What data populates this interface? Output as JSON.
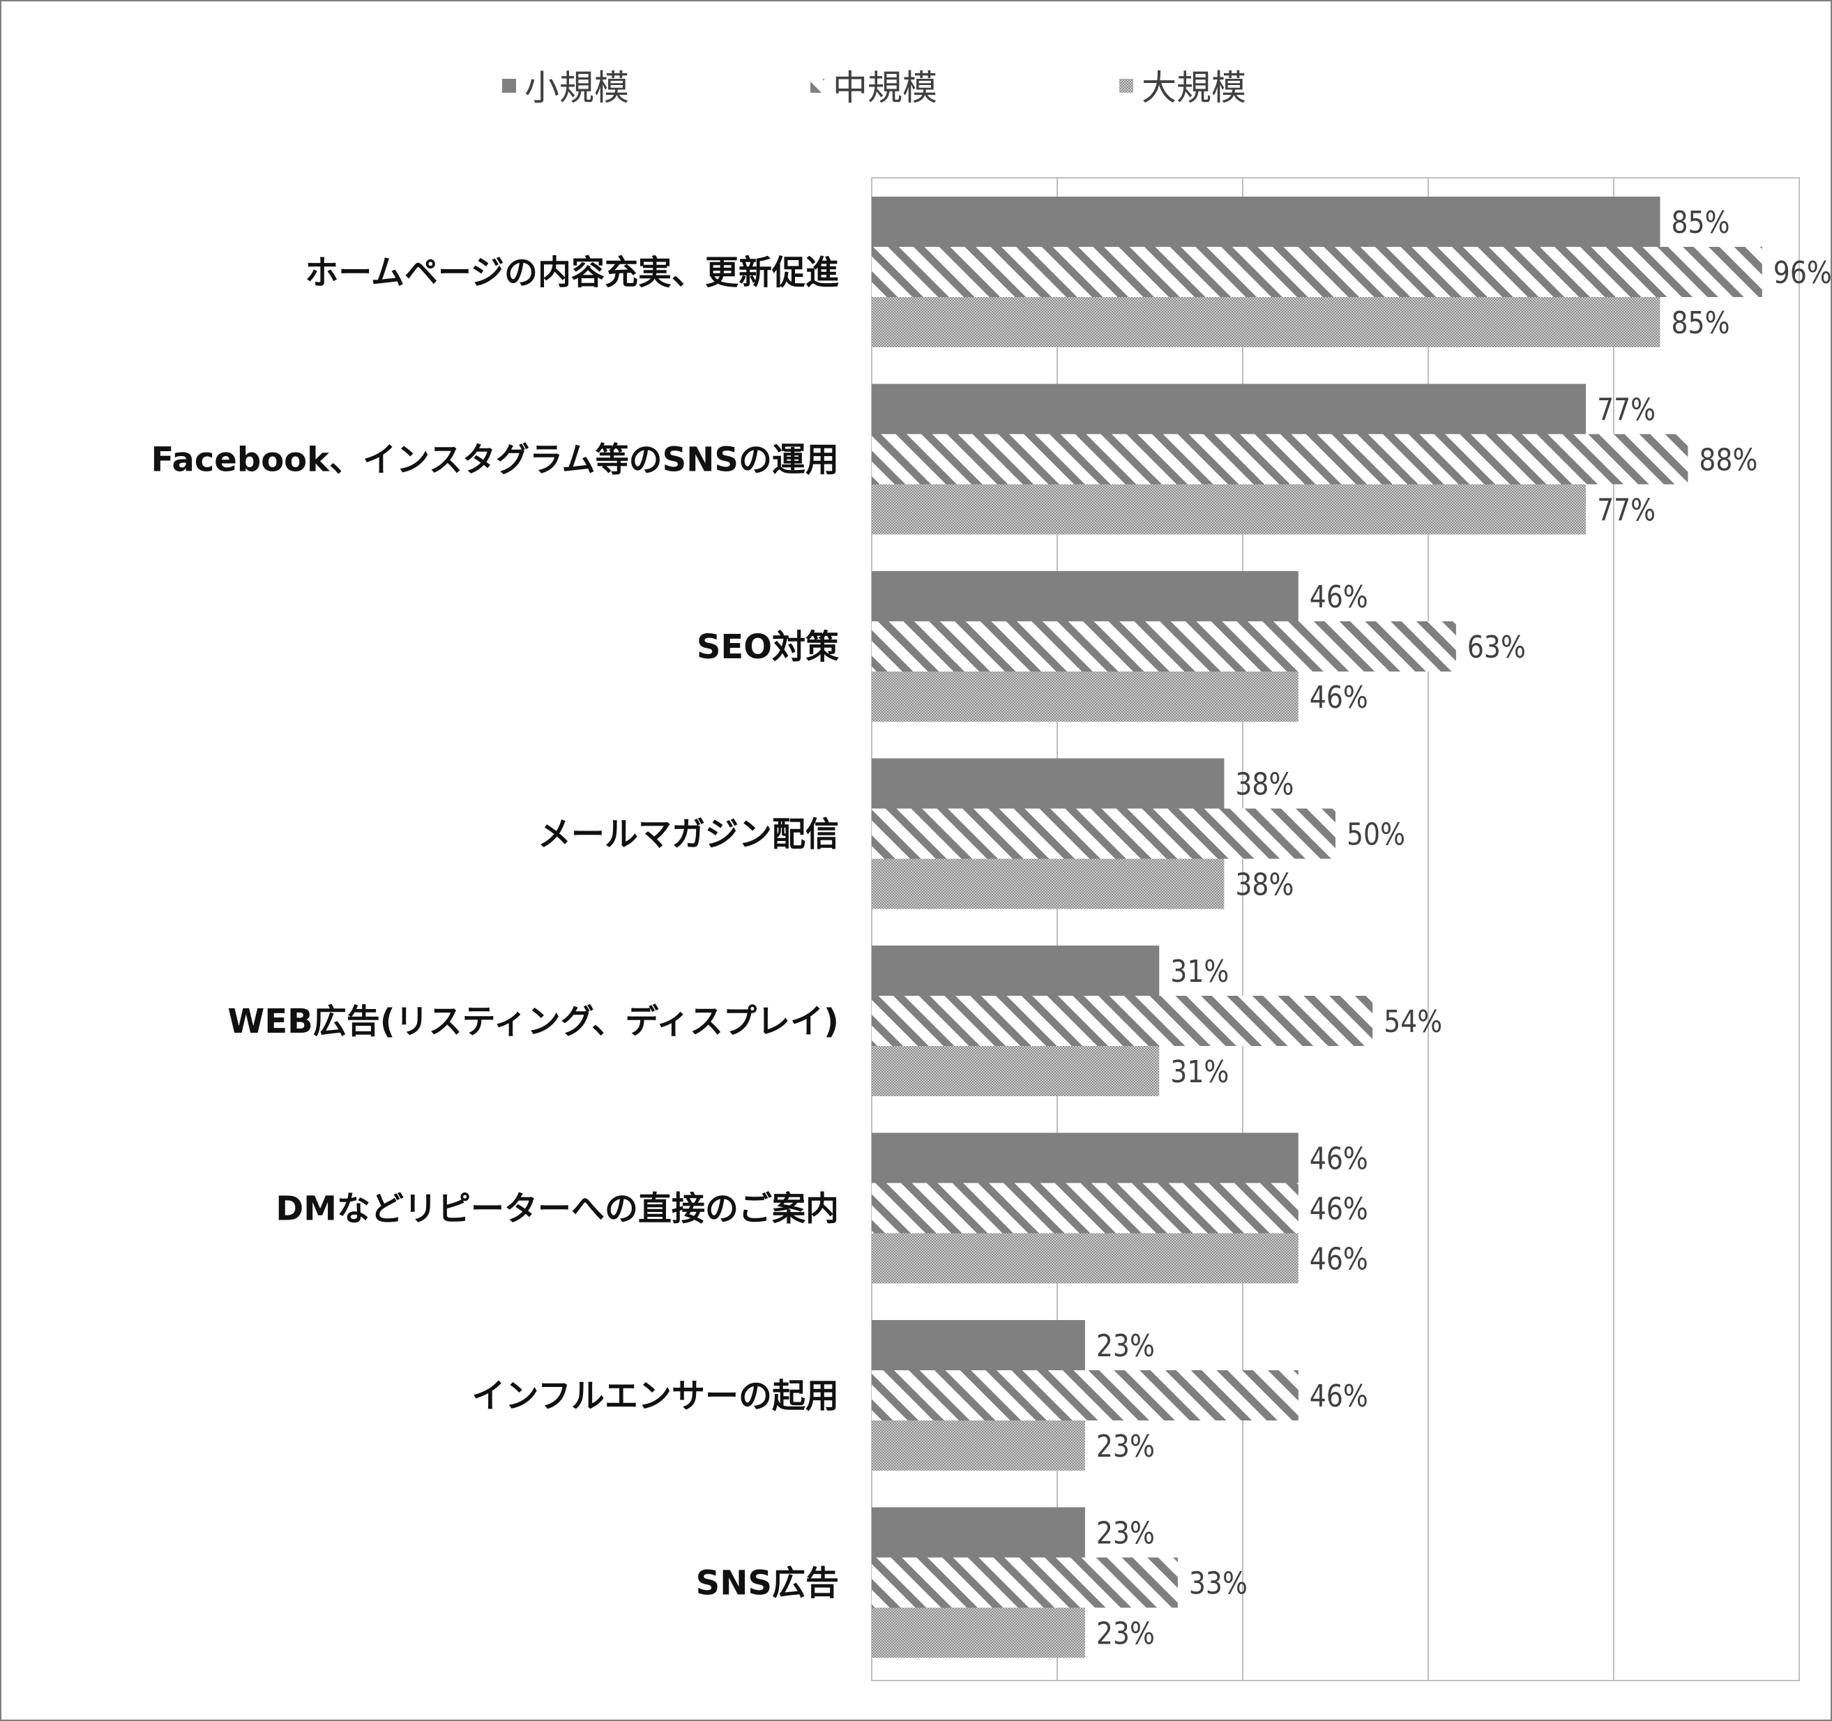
{
  "chart_data": {
    "type": "bar",
    "orientation": "horizontal",
    "title": "",
    "xlabel": "",
    "ylabel": "",
    "xlim": [
      0,
      100
    ],
    "grid": true,
    "legend_position": "top",
    "categories": [
      "ホームページの内容充実、更新促進",
      "Facebook、インスタグラム等のSNSの運用",
      "SEO対策",
      "メールマガジン配信",
      "WEB広告(リスティング、ディスプレイ)",
      "DMなどリピーターへの直接のご案内",
      "インフルエンサーの起用",
      "SNS広告"
    ],
    "series": [
      {
        "name": "小規模",
        "pattern": "solid",
        "color": "#808080",
        "values": [
          85,
          77,
          46,
          38,
          31,
          46,
          23,
          23
        ],
        "labels": [
          "85%",
          "77%",
          "46%",
          "38%",
          "31%",
          "46%",
          "23%",
          "23%"
        ]
      },
      {
        "name": "中規模",
        "pattern": "diagonal-stripe",
        "color": "#7f7f7f",
        "values": [
          96,
          88,
          63,
          50,
          54,
          46,
          46,
          33
        ],
        "labels": [
          "96%",
          "88%",
          "63%",
          "50%",
          "54%",
          "46%",
          "46%",
          "33%"
        ]
      },
      {
        "name": "大規模",
        "pattern": "dotted",
        "color": "#a6a6a6",
        "values": [
          85,
          77,
          46,
          38,
          31,
          46,
          23,
          23
        ],
        "labels": [
          "85%",
          "77%",
          "46%",
          "38%",
          "31%",
          "46%",
          "23%",
          "23%"
        ]
      }
    ]
  }
}
